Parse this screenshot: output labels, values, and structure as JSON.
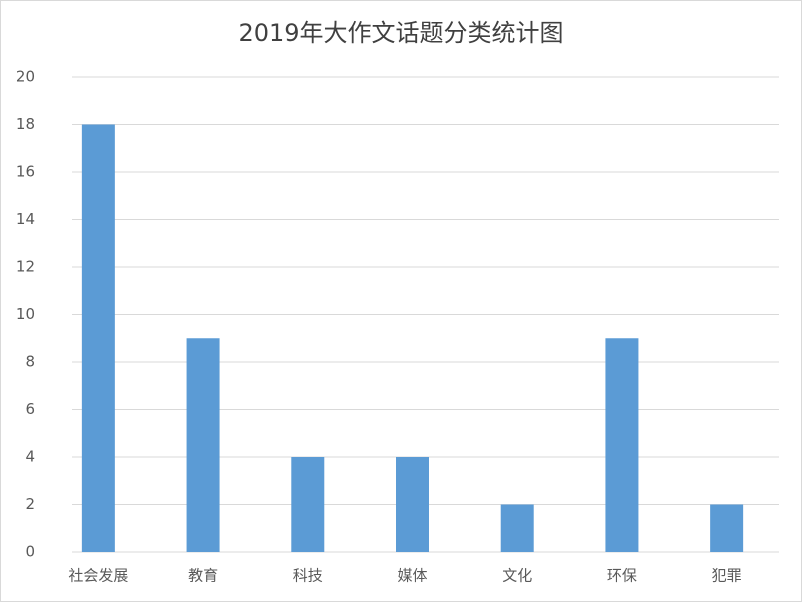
{
  "chart_data": {
    "type": "bar",
    "title": "2019年大作文话题分类统计图",
    "categories": [
      "社会发展",
      "教育",
      "科技",
      "媒体",
      "文化",
      "环保",
      "犯罪"
    ],
    "values": [
      18,
      9,
      4,
      4,
      2,
      9,
      2
    ],
    "color": "#5b9bd5",
    "ylim": [
      0,
      20
    ],
    "yticks": [
      0,
      2,
      4,
      6,
      8,
      10,
      12,
      14,
      16,
      18,
      20
    ],
    "grid": true
  }
}
